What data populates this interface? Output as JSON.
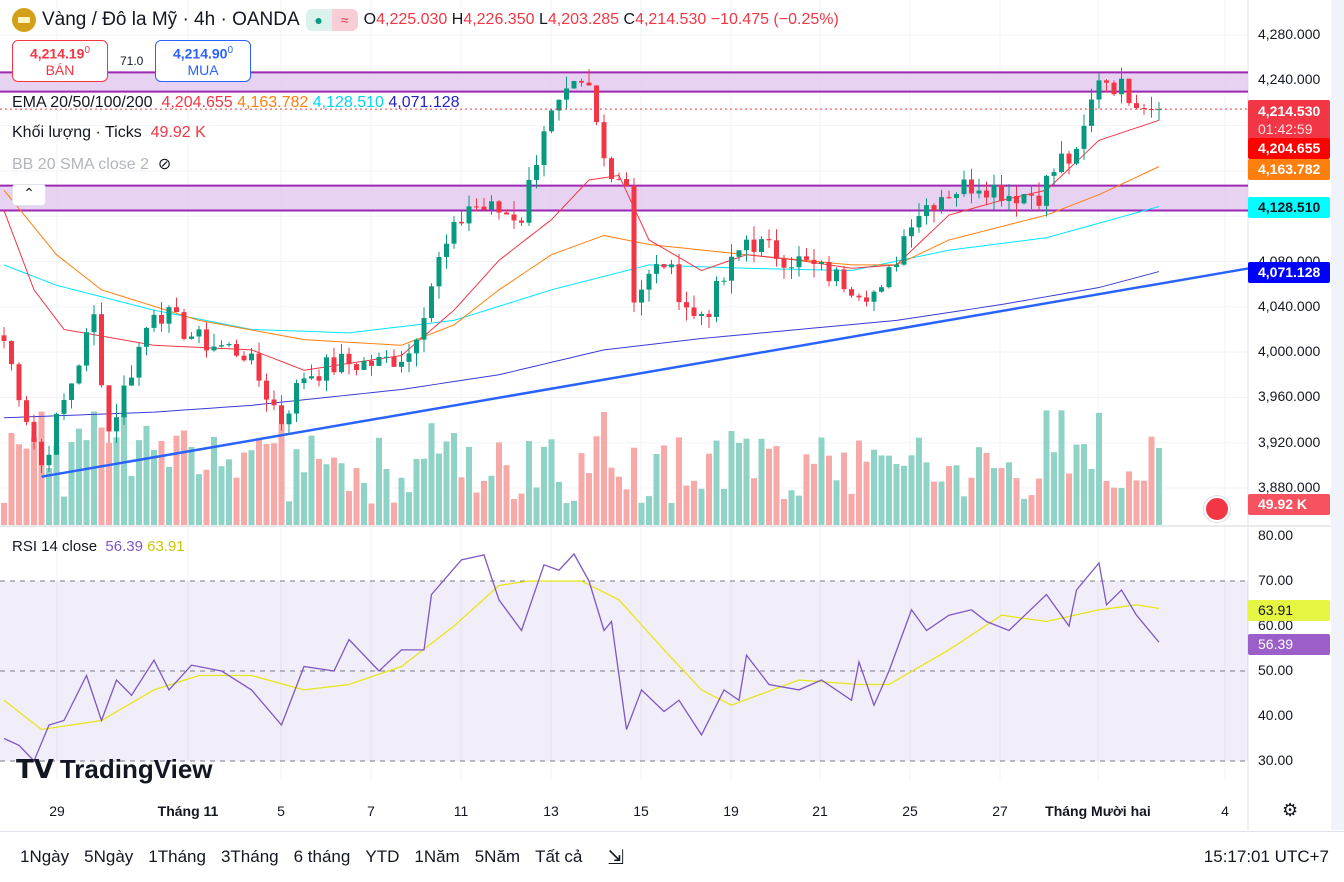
{
  "header": {
    "symbol": "Vàng / Đô la Mỹ · 4h · OANDA",
    "open_label": "O",
    "open": "4,225.030",
    "high_label": "H",
    "high": "4,226.350",
    "low_label": "L",
    "low": "4,203.285",
    "close_label": "C",
    "close": "4,214.530",
    "change": "−10.475 (−0.25%)"
  },
  "trade": {
    "sell_price": "4,214.19",
    "sell_sup": "0",
    "sell_label": "BÁN",
    "spread": "71.0",
    "buy_price": "4,214.90",
    "buy_sup": "0",
    "buy_label": "MUA"
  },
  "indicators": {
    "ema_label": "EMA 20/50/100/200",
    "ema20": "4,204.655",
    "ema50": "4,163.782",
    "ema100": "4,128.510",
    "ema200": "4,071.128",
    "volume_label": "Khối lượng · Ticks",
    "volume_value": "49.92 K",
    "bb_label": "BB 20 SMA close 2",
    "rsi_label": "RSI 14 close",
    "rsi_value": "56.39",
    "rsi_ma_value": "63.91"
  },
  "price_axis": [
    "4,280.000",
    "4,240.000",
    "4,080.000",
    "4,040.000",
    "4,000.000",
    "3,960.000",
    "3,920.000",
    "3,880.000"
  ],
  "price_tags": {
    "last": "4,214.530",
    "countdown": "01:42:59",
    "ema20": "4,204.655",
    "ema50": "4,163.782",
    "ema100": "4,128.510",
    "ema200": "4,071.128",
    "volume": "49.92 K",
    "rsi": "56.39",
    "rsi_ma": "63.91"
  },
  "rsi_axis": [
    "80.00",
    "70.00",
    "60.00",
    "50.00",
    "40.00",
    "30.00"
  ],
  "date_axis": [
    "29",
    "Tháng 11",
    "5",
    "7",
    "11",
    "13",
    "15",
    "19",
    "21",
    "25",
    "27",
    "Tháng Mười hai",
    "4"
  ],
  "ranges": [
    "1Ngày",
    "5Ngày",
    "1Tháng",
    "3Tháng",
    "6 tháng",
    "YTD",
    "1Năm",
    "5Năm",
    "Tất cả"
  ],
  "clock": "15:17:01 UTC+7",
  "brand": "TradingView",
  "colors": {
    "up": "#089981",
    "down": "#f23645",
    "ema20": "#f23645",
    "ema50": "#ff7f0e",
    "ema100": "#00e5ff",
    "ema200": "#3b3bd6",
    "trend": "#2962ff",
    "zone": "#9c27b0",
    "rsi": "#7e57c2",
    "rsi_ma": "#e6e619"
  },
  "chart_data": {
    "type": "candlestick",
    "title": "Vàng / Đô la Mỹ · 4h · OANDA",
    "ylim": [
      3860,
      4300
    ],
    "bars": 155,
    "close_path": [
      [
        0,
        4010
      ],
      [
        5,
        3900
      ],
      [
        12,
        4030
      ],
      [
        14,
        3930
      ],
      [
        20,
        4040
      ],
      [
        26,
        4010
      ],
      [
        32,
        4000
      ],
      [
        37,
        3940
      ],
      [
        40,
        3980
      ],
      [
        45,
        3990
      ],
      [
        50,
        3990
      ],
      [
        54,
        4000
      ],
      [
        58,
        4080
      ],
      [
        62,
        4130
      ],
      [
        69,
        4120
      ],
      [
        72,
        4200
      ],
      [
        76,
        4230
      ],
      [
        78,
        4230
      ],
      [
        80,
        4170
      ],
      [
        83,
        4150
      ],
      [
        84,
        4050
      ],
      [
        88,
        4080
      ],
      [
        92,
        4030
      ],
      [
        94,
        4040
      ],
      [
        99,
        4100
      ],
      [
        102,
        4090
      ],
      [
        106,
        4080
      ],
      [
        113,
        4060
      ],
      [
        117,
        4050
      ],
      [
        121,
        4120
      ],
      [
        125,
        4140
      ],
      [
        130,
        4150
      ],
      [
        134,
        4140
      ],
      [
        138,
        4140
      ],
      [
        141,
        4170
      ],
      [
        143,
        4170
      ],
      [
        146,
        4245
      ],
      [
        151,
        4225
      ],
      [
        154,
        4214.53
      ]
    ],
    "ema20": [
      [
        0,
        4125
      ],
      [
        4,
        4055
      ],
      [
        8,
        4020
      ],
      [
        20,
        4006
      ],
      [
        33,
        4002
      ],
      [
        40,
        3984
      ],
      [
        53,
        3997
      ],
      [
        60,
        4037
      ],
      [
        66,
        4081
      ],
      [
        73,
        4117
      ],
      [
        78,
        4152
      ],
      [
        82,
        4156
      ],
      [
        86,
        4099
      ],
      [
        93,
        4072
      ],
      [
        99,
        4086
      ],
      [
        106,
        4081
      ],
      [
        113,
        4074
      ],
      [
        119,
        4077
      ],
      [
        126,
        4121
      ],
      [
        133,
        4134
      ],
      [
        139,
        4143
      ],
      [
        146,
        4187
      ],
      [
        154,
        4204.655
      ]
    ],
    "ema50": [
      [
        0,
        4143
      ],
      [
        7,
        4086
      ],
      [
        13,
        4055
      ],
      [
        26,
        4028
      ],
      [
        40,
        4011
      ],
      [
        53,
        4006
      ],
      [
        60,
        4024
      ],
      [
        66,
        4055
      ],
      [
        73,
        4086
      ],
      [
        80,
        4103
      ],
      [
        86,
        4095
      ],
      [
        99,
        4086
      ],
      [
        113,
        4077
      ],
      [
        119,
        4077
      ],
      [
        126,
        4099
      ],
      [
        139,
        4121
      ],
      [
        146,
        4139
      ],
      [
        154,
        4163.782
      ]
    ],
    "ema100": [
      [
        0,
        4077
      ],
      [
        7,
        4059
      ],
      [
        20,
        4037
      ],
      [
        33,
        4020
      ],
      [
        46,
        4017
      ],
      [
        60,
        4028
      ],
      [
        73,
        4055
      ],
      [
        86,
        4077
      ],
      [
        99,
        4074
      ],
      [
        113,
        4072
      ],
      [
        126,
        4090
      ],
      [
        139,
        4101
      ],
      [
        154,
        4128.51
      ]
    ],
    "ema200": [
      [
        0,
        3942
      ],
      [
        20,
        3947
      ],
      [
        33,
        3953
      ],
      [
        53,
        3967
      ],
      [
        66,
        3980
      ],
      [
        80,
        4002
      ],
      [
        93,
        4012
      ],
      [
        106,
        4020
      ],
      [
        119,
        4028
      ],
      [
        133,
        4042
      ],
      [
        146,
        4057
      ],
      [
        154,
        4071.128
      ]
    ],
    "trendline": [
      [
        5,
        3890
      ],
      [
        166,
        4074
      ]
    ],
    "zones": [
      [
        4230,
        4247
      ],
      [
        4125,
        4147
      ]
    ],
    "rsi": [
      [
        0,
        35
      ],
      [
        2,
        33.5
      ],
      [
        4,
        30
      ],
      [
        6,
        38
      ],
      [
        8,
        39
      ],
      [
        11,
        49
      ],
      [
        13,
        39
      ],
      [
        15,
        48
      ],
      [
        17,
        44.6
      ],
      [
        20,
        52.4
      ],
      [
        22,
        45.8
      ],
      [
        25,
        51.3
      ],
      [
        29,
        50
      ],
      [
        33,
        45.8
      ],
      [
        37,
        38
      ],
      [
        40,
        51
      ],
      [
        44,
        50
      ],
      [
        46,
        57
      ],
      [
        50,
        50
      ],
      [
        53,
        54.7
      ],
      [
        56,
        54.7
      ],
      [
        57,
        67
      ],
      [
        61,
        74.7
      ],
      [
        64,
        75.8
      ],
      [
        66,
        65.8
      ],
      [
        69,
        59
      ],
      [
        72,
        73.6
      ],
      [
        74,
        72.4
      ],
      [
        76,
        76
      ],
      [
        78,
        70
      ],
      [
        80,
        59
      ],
      [
        81,
        61
      ],
      [
        83,
        37
      ],
      [
        85,
        45.8
      ],
      [
        88,
        41
      ],
      [
        90,
        43.5
      ],
      [
        93,
        35.8
      ],
      [
        96,
        45.8
      ],
      [
        98,
        43.5
      ],
      [
        99,
        53.5
      ],
      [
        102,
        47
      ],
      [
        106,
        45.8
      ],
      [
        109,
        48
      ],
      [
        113,
        43.5
      ],
      [
        114,
        52
      ],
      [
        116,
        42.4
      ],
      [
        118,
        50
      ],
      [
        121,
        63.6
      ],
      [
        123,
        59
      ],
      [
        126,
        62.4
      ],
      [
        129,
        63.6
      ],
      [
        131,
        61
      ],
      [
        134,
        59
      ],
      [
        139,
        67
      ],
      [
        142,
        60
      ],
      [
        143,
        68
      ],
      [
        146,
        74
      ],
      [
        147,
        64.7
      ],
      [
        149,
        68
      ],
      [
        151,
        62.4
      ],
      [
        154,
        56.39
      ]
    ],
    "rsi_ma": [
      [
        0,
        43.5
      ],
      [
        5,
        37
      ],
      [
        13,
        39
      ],
      [
        20,
        45.8
      ],
      [
        26,
        49
      ],
      [
        33,
        49
      ],
      [
        40,
        45.8
      ],
      [
        46,
        47
      ],
      [
        53,
        51
      ],
      [
        60,
        60
      ],
      [
        66,
        69
      ],
      [
        70,
        70
      ],
      [
        77,
        70
      ],
      [
        82,
        65.8
      ],
      [
        88,
        54.7
      ],
      [
        93,
        45.8
      ],
      [
        97,
        42.4
      ],
      [
        106,
        48
      ],
      [
        114,
        47
      ],
      [
        118,
        47
      ],
      [
        126,
        54.7
      ],
      [
        133,
        62.4
      ],
      [
        139,
        61
      ],
      [
        146,
        63.6
      ],
      [
        151,
        64.7
      ],
      [
        154,
        63.91
      ]
    ],
    "rsi_ylim": [
      30,
      80
    ],
    "rsi_levels": [
      30,
      50,
      70
    ]
  }
}
